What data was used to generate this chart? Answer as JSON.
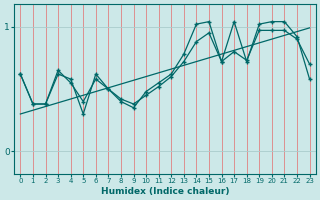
{
  "xlabel": "Humidex (Indice chaleur)",
  "bg_color": "#cce8e8",
  "vgrid_color": "#e08080",
  "hgrid_color": "#aacccc",
  "line_color": "#006868",
  "xlim": [
    -0.5,
    23.5
  ],
  "ylim": [
    -0.18,
    1.18
  ],
  "yticks": [
    0,
    1
  ],
  "xticks": [
    0,
    1,
    2,
    3,
    4,
    5,
    6,
    7,
    8,
    9,
    10,
    11,
    12,
    13,
    14,
    15,
    16,
    17,
    18,
    19,
    20,
    21,
    22,
    23
  ],
  "series_smooth_x": [
    0,
    1,
    2,
    3,
    4,
    5,
    6,
    7,
    8,
    9,
    10,
    11,
    12,
    13,
    14,
    15,
    16,
    17,
    18,
    19,
    20,
    21,
    22,
    23
  ],
  "series_smooth_y": [
    0.3,
    0.33,
    0.36,
    0.39,
    0.42,
    0.45,
    0.48,
    0.51,
    0.54,
    0.57,
    0.6,
    0.63,
    0.66,
    0.69,
    0.72,
    0.75,
    0.78,
    0.81,
    0.84,
    0.87,
    0.9,
    0.93,
    0.96,
    0.99
  ],
  "series_mid_x": [
    0,
    1,
    2,
    3,
    4,
    5,
    6,
    7,
    8,
    9,
    10,
    11,
    12,
    13,
    14,
    15,
    16,
    17,
    18,
    19,
    20,
    21,
    22,
    23
  ],
  "series_mid_y": [
    0.62,
    0.38,
    0.38,
    0.65,
    0.55,
    0.4,
    0.58,
    0.5,
    0.42,
    0.38,
    0.45,
    0.52,
    0.6,
    0.72,
    0.88,
    0.95,
    0.72,
    0.8,
    0.73,
    0.97,
    0.97,
    0.97,
    0.9,
    0.7
  ],
  "series_volatile_x": [
    0,
    1,
    2,
    3,
    4,
    5,
    6,
    7,
    8,
    9,
    10,
    11,
    12,
    13,
    14,
    15,
    16,
    17,
    18,
    19,
    20,
    21,
    22,
    23
  ],
  "series_volatile_y": [
    0.62,
    0.38,
    0.38,
    0.62,
    0.58,
    0.3,
    0.62,
    0.5,
    0.4,
    0.35,
    0.48,
    0.55,
    0.62,
    0.78,
    1.02,
    1.04,
    0.72,
    1.04,
    0.72,
    1.02,
    1.04,
    1.04,
    0.92,
    0.58
  ]
}
